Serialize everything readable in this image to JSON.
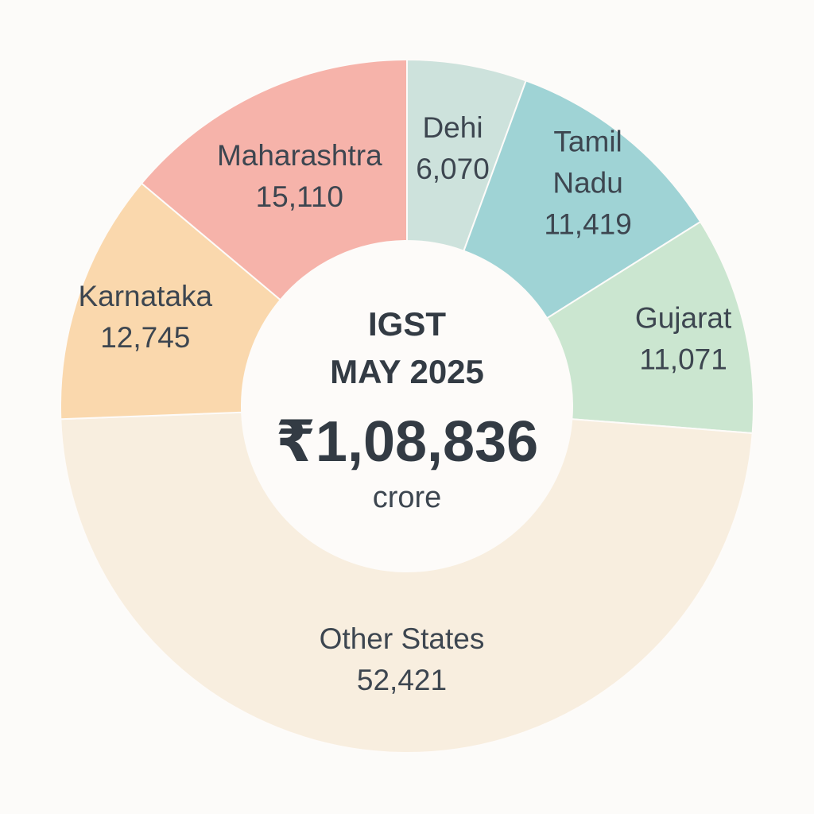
{
  "chart_data": {
    "type": "pie",
    "style": "donut",
    "center": {
      "title_line1": "IGST",
      "title_line2": "MAY 2025",
      "total": "₹1,08,836",
      "unit": "crore"
    },
    "slices": [
      {
        "label": "Dehi",
        "label_lines": [
          "Dehi"
        ],
        "value": 6070,
        "value_label": "6,070",
        "color": "#cde2dc"
      },
      {
        "label": "Tamil Nadu",
        "label_lines": [
          "Tamil",
          "Nadu"
        ],
        "value": 11419,
        "value_label": "11,419",
        "color": "#9fd3d5"
      },
      {
        "label": "Gujarat",
        "label_lines": [
          "Gujarat"
        ],
        "value": 11071,
        "value_label": "11,071",
        "color": "#cbe6d0"
      },
      {
        "label": "Other States",
        "label_lines": [
          "Other States"
        ],
        "value": 52421,
        "value_label": "52,421",
        "color": "#f8eedf"
      },
      {
        "label": "Karnataka",
        "label_lines": [
          "Karnataka"
        ],
        "value": 12745,
        "value_label": "12,745",
        "color": "#fad8ad"
      },
      {
        "label": "Maharashtra",
        "label_lines": [
          "Maharashtra"
        ],
        "value": 15110,
        "value_label": "15,110",
        "color": "#f6b3aa"
      }
    ]
  }
}
